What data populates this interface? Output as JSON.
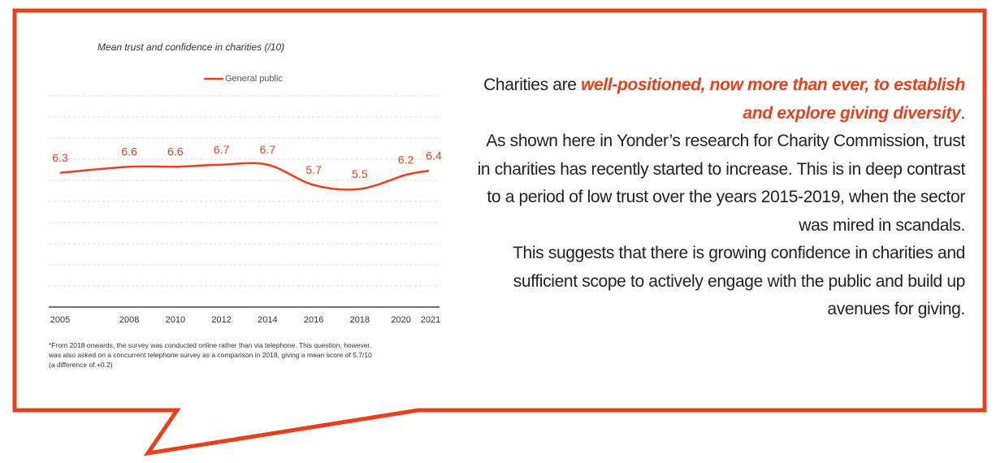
{
  "colors": {
    "accent": "#e8401c",
    "grid": "#d9d9d9",
    "text": "#333333"
  },
  "chart_data": {
    "type": "line",
    "title": "Mean trust and confidence in charities (/10)",
    "x": [
      2005,
      2008,
      2010,
      2012,
      2014,
      2016,
      2018,
      2020,
      2021
    ],
    "tick_labels": [
      "2005",
      "2008",
      "2010",
      "2012",
      "2014",
      "2016",
      "2018",
      "2020",
      "2021"
    ],
    "series": [
      {
        "name": "General public",
        "values": [
          6.3,
          6.6,
          6.6,
          6.7,
          6.7,
          5.7,
          5.5,
          6.2,
          6.4
        ],
        "data_labels": [
          "6.3",
          "6.6",
          "6.6",
          "6.7",
          "6.7",
          "5.7",
          "5.5",
          "6.2",
          "6.4"
        ]
      }
    ],
    "legend": "top-center",
    "grid": true,
    "xlabel": "",
    "ylabel": ""
  },
  "footnote": [
    "*From 2018 onwards, the survey was conducted online rather than via telephone. This question, however,",
    "was also asked on a concurrent telephone survey as a comparison in 2018, giving a mean score of 5.7/10",
    "(a difference of +0.2)"
  ],
  "copy": {
    "p1_start": "Charities are ",
    "p1_highlight": "well-positioned, now more than ever, to establish and explore giving diversity",
    "p1_end": ".",
    "p2": "As shown here in Yonder’s research for Charity Commission, trust in charities has recently started to increase. This is in deep contrast to a period of low trust over the years 2015-2019, when the sector was mired in scandals.",
    "p3": "This suggests that there is growing confidence in charities and sufficient scope to actively engage with the public and build up avenues for giving."
  }
}
